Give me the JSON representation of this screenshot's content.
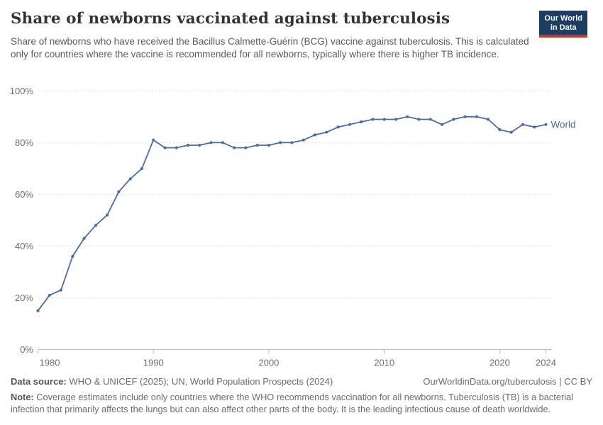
{
  "header": {
    "title": "Share of newborns vaccinated against tuberculosis",
    "subtitle": "Share of newborns who have received the Bacillus Calmette-Guérin (BCG) vaccine against tuberculosis. This is calculated only for countries where the vaccine is recommended for all newborns, typically where there is higher TB incidence.",
    "logo": {
      "line1": "Our World",
      "line2": "in Data",
      "bg_color": "#1d3d63",
      "stripe_color": "#c0392b"
    }
  },
  "chart_data": {
    "type": "line",
    "title": "Share of newborns vaccinated against tuberculosis",
    "xlabel": "",
    "ylabel": "",
    "xlim": [
      1980,
      2024
    ],
    "ylim": [
      0,
      100
    ],
    "x_ticks": [
      1980,
      1990,
      2000,
      2010,
      2020,
      2024
    ],
    "y_ticks": [
      0,
      20,
      40,
      60,
      80,
      100
    ],
    "y_tick_suffix": "%",
    "grid": "horizontal-dashed",
    "legend": "end-of-line-label",
    "series": [
      {
        "name": "World",
        "color": "#4c6ba8",
        "x": [
          1980,
          1981,
          1982,
          1983,
          1984,
          1985,
          1986,
          1987,
          1988,
          1989,
          1990,
          1991,
          1992,
          1993,
          1994,
          1995,
          1996,
          1997,
          1998,
          1999,
          2000,
          2001,
          2002,
          2003,
          2004,
          2005,
          2006,
          2007,
          2008,
          2009,
          2010,
          2011,
          2012,
          2013,
          2014,
          2015,
          2016,
          2017,
          2018,
          2019,
          2020,
          2021,
          2022,
          2023,
          2024
        ],
        "values": [
          15,
          21,
          23,
          36,
          43,
          48,
          52,
          61,
          66,
          70,
          81,
          78,
          78,
          79,
          79,
          80,
          80,
          78,
          78,
          79,
          79,
          80,
          80,
          81,
          83,
          84,
          86,
          87,
          88,
          89,
          89,
          89,
          90,
          89,
          89,
          87,
          89,
          90,
          90,
          89,
          85,
          84,
          87,
          86,
          87
        ]
      }
    ]
  },
  "footer": {
    "data_source_label": "Data source:",
    "data_source": " WHO & UNICEF (2025); UN, World Population Prospects (2024)",
    "link": "OurWorldinData.org/tuberculosis | CC BY",
    "note_label": "Note:",
    "note": " Coverage estimates include only countries where the WHO recommends vaccination for all newborns. Tuberculosis (TB) is a bacterial infection that primarily affects the lungs but can also affect other parts of the body. It is the leading infectious cause of death worldwide."
  }
}
